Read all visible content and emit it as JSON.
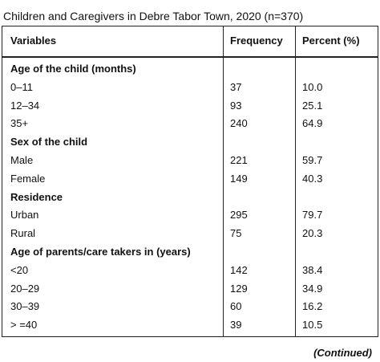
{
  "title": "Children and Caregivers in Debre Tabor Town, 2020 (n=370)",
  "table": {
    "columns": [
      "Variables",
      "Frequency",
      "Percent (%)"
    ],
    "rows": [
      [
        "Age of the child (months)"
      ],
      [
        "0–11",
        "37",
        "10.0"
      ],
      [
        "12–34",
        "93",
        "25.1"
      ],
      [
        "35+",
        "240",
        "64.9"
      ],
      [
        "Sex of the child"
      ],
      [
        "Male",
        "221",
        "59.7"
      ],
      [
        "Female",
        "149",
        "40.3"
      ],
      [
        "Residence"
      ],
      [
        "Urban",
        "295",
        "79.7"
      ],
      [
        "Rural",
        "75",
        "20.3"
      ],
      [
        "Age of parents/care takers in (years)"
      ],
      [
        "<20",
        "142",
        "38.4"
      ],
      [
        "20–29",
        "129",
        "34.9"
      ],
      [
        "30–39",
        "60",
        "16.2"
      ],
      [
        "> =40",
        "39",
        "10.5"
      ]
    ]
  },
  "footer": "(Continued)"
}
